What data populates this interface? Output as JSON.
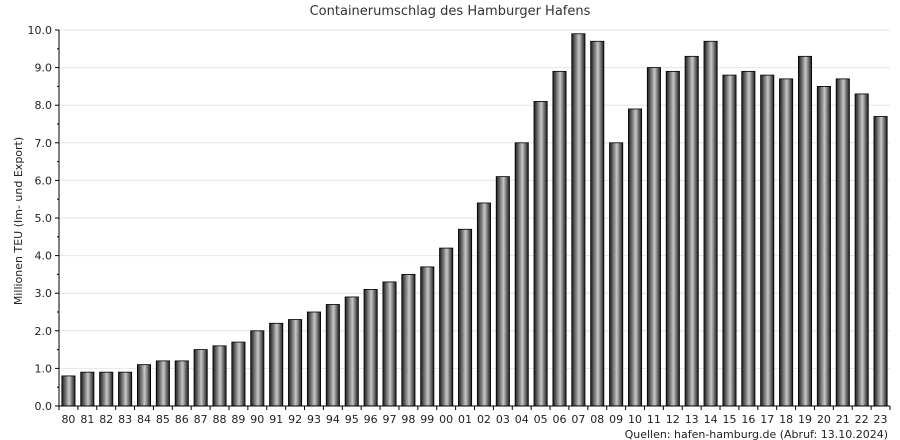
{
  "chart_data": {
    "type": "bar",
    "title": "Containerumschlag des Hamburger Hafens",
    "ylabel": "Millionen TEU (Im- und Export)",
    "xlabel": "",
    "source": "Quellen: hafen-hamburg.de (Abruf: 13.10.2024)",
    "ylim": [
      0,
      10
    ],
    "y_ticks": [
      "0.0",
      "1.0",
      "2.0",
      "3.0",
      "4.0",
      "5.0",
      "6.0",
      "7.0",
      "8.0",
      "9.0",
      "10.0"
    ],
    "grid": true,
    "categories": [
      "80",
      "81",
      "82",
      "83",
      "84",
      "85",
      "86",
      "87",
      "88",
      "89",
      "90",
      "91",
      "92",
      "93",
      "94",
      "95",
      "96",
      "97",
      "98",
      "99",
      "00",
      "01",
      "02",
      "03",
      "04",
      "05",
      "06",
      "07",
      "08",
      "09",
      "10",
      "11",
      "12",
      "13",
      "14",
      "15",
      "16",
      "17",
      "18",
      "19",
      "20",
      "21",
      "22",
      "23"
    ],
    "values": [
      0.8,
      0.9,
      0.9,
      0.9,
      1.1,
      1.2,
      1.2,
      1.5,
      1.6,
      1.7,
      2.0,
      2.2,
      2.3,
      2.5,
      2.7,
      2.9,
      3.1,
      3.3,
      3.5,
      3.7,
      4.2,
      4.7,
      5.4,
      6.1,
      7.0,
      8.1,
      8.9,
      9.9,
      9.7,
      7.0,
      7.9,
      9.0,
      8.9,
      9.3,
      9.7,
      8.8,
      8.9,
      8.8,
      8.7,
      9.3,
      8.5,
      8.7,
      8.3,
      7.7
    ],
    "colors": {
      "bar_dark": "#1a1a1a",
      "bar_light": "#c8c8c8",
      "grid": "#e6e6e6",
      "axis": "#000000"
    }
  }
}
